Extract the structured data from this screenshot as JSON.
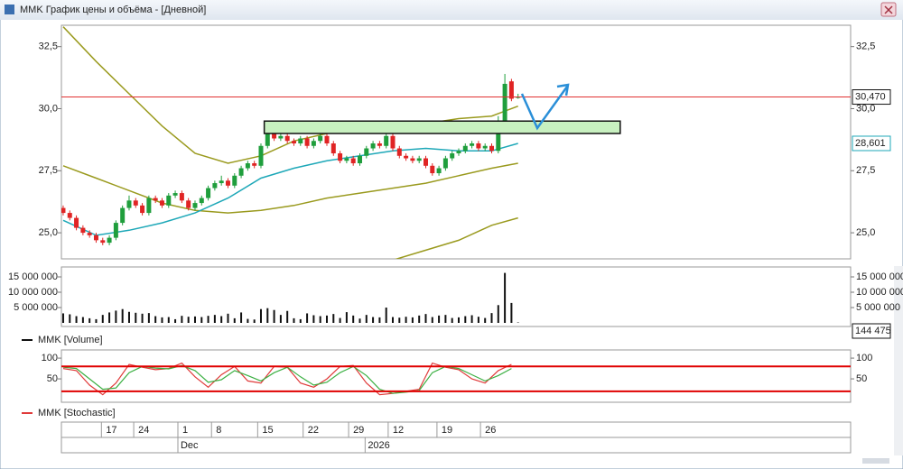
{
  "window": {
    "title": "MMK График цены и объёма - [Дневной]"
  },
  "date_axis": {
    "xlim": [
      -0.27,
      119.45
    ],
    "day_ticks": [
      {
        "value": 5.8,
        "label": "17"
      },
      {
        "value": 10.7,
        "label": "24"
      },
      {
        "value": 17.4,
        "label": "1"
      },
      {
        "value": 22.5,
        "label": "8"
      },
      {
        "value": 29.5,
        "label": "15"
      },
      {
        "value": 36.4,
        "label": "22"
      },
      {
        "value": 43.3,
        "label": "29"
      },
      {
        "value": 49.3,
        "label": "12"
      },
      {
        "value": 56.7,
        "label": "19"
      },
      {
        "value": 63.3,
        "label": "26"
      }
    ],
    "month_ticks": [
      {
        "value": 17.4,
        "label": "Dec"
      },
      {
        "value": 45.8,
        "label": "2026"
      }
    ]
  },
  "chart_data": [
    {
      "type": "candlestick",
      "up_color": "#1f9e3c",
      "down_color": "#e02424",
      "ylim": [
        23.95,
        33.36
      ],
      "yticks": [
        {
          "value": 25,
          "label": "25,0"
        },
        {
          "value": 27.5,
          "label": "27,5"
        },
        {
          "value": 30,
          "label": "30,0"
        },
        {
          "value": 32.5,
          "label": "32,5"
        }
      ],
      "open": [
        26.0,
        25.8,
        25.6,
        25.2,
        25.0,
        24.9,
        24.7,
        24.6,
        24.8,
        25.4,
        26.0,
        26.3,
        26.1,
        25.8,
        26.4,
        26.3,
        26.1,
        26.5,
        26.6,
        26.3,
        26.0,
        26.2,
        26.4,
        26.8,
        27.0,
        27.1,
        26.9,
        27.3,
        27.6,
        27.8,
        27.7,
        28.5,
        29.0,
        28.8,
        28.9,
        28.7,
        28.6,
        28.8,
        28.5,
        28.7,
        28.9,
        28.6,
        28.2,
        27.9,
        28.0,
        27.8,
        28.1,
        28.4,
        28.6,
        28.5,
        28.9,
        28.4,
        28.1,
        28.0,
        27.9,
        28.0,
        27.7,
        27.4,
        27.6,
        28.0,
        28.2,
        28.3,
        28.5,
        28.6,
        28.4,
        28.5,
        28.3,
        29.5,
        31.1,
        30.45
      ],
      "high": [
        26.1,
        25.9,
        25.7,
        25.3,
        25.1,
        25.0,
        24.8,
        24.9,
        25.5,
        26.1,
        26.5,
        26.4,
        26.2,
        26.5,
        26.5,
        26.4,
        26.6,
        26.7,
        26.7,
        26.4,
        26.3,
        26.5,
        26.9,
        27.1,
        27.3,
        27.2,
        27.4,
        27.7,
        27.9,
        27.9,
        28.6,
        29.2,
        29.1,
        29.0,
        29.0,
        28.8,
        28.9,
        28.9,
        28.8,
        29.0,
        29.0,
        28.7,
        28.3,
        28.1,
        28.1,
        28.2,
        28.5,
        28.7,
        28.7,
        29.0,
        29.0,
        28.5,
        28.2,
        28.1,
        28.1,
        28.1,
        27.8,
        27.7,
        28.1,
        28.3,
        28.4,
        28.6,
        28.7,
        28.7,
        28.6,
        28.6,
        29.7,
        31.4,
        31.2,
        30.6
      ],
      "low": [
        25.7,
        25.5,
        25.1,
        24.9,
        24.8,
        24.6,
        24.5,
        24.5,
        24.7,
        25.3,
        25.9,
        26.0,
        25.7,
        25.7,
        26.2,
        26.0,
        26.0,
        26.4,
        26.2,
        25.9,
        25.9,
        26.1,
        26.3,
        26.7,
        26.9,
        26.8,
        26.8,
        27.2,
        27.5,
        27.6,
        27.6,
        28.4,
        28.7,
        28.7,
        28.6,
        28.5,
        28.5,
        28.4,
        28.4,
        28.6,
        28.5,
        28.1,
        27.8,
        27.8,
        27.7,
        27.7,
        28.0,
        28.3,
        28.4,
        28.4,
        28.3,
        28.0,
        27.9,
        27.8,
        27.8,
        27.6,
        27.3,
        27.3,
        27.5,
        27.9,
        28.1,
        28.2,
        28.4,
        28.3,
        28.3,
        28.2,
        28.2,
        29.4,
        30.3,
        30.4
      ],
      "close": [
        25.8,
        25.6,
        25.2,
        25.0,
        24.9,
        24.7,
        24.6,
        24.8,
        25.4,
        26.0,
        26.3,
        26.1,
        25.8,
        26.4,
        26.3,
        26.1,
        26.5,
        26.6,
        26.3,
        26.0,
        26.2,
        26.4,
        26.8,
        27.0,
        27.1,
        26.9,
        27.3,
        27.6,
        27.8,
        27.7,
        28.5,
        29.0,
        28.8,
        28.9,
        28.7,
        28.6,
        28.8,
        28.5,
        28.7,
        28.9,
        28.6,
        28.2,
        27.9,
        28.0,
        27.8,
        28.1,
        28.4,
        28.6,
        28.5,
        28.9,
        28.4,
        28.1,
        28.0,
        27.9,
        28.0,
        27.7,
        27.4,
        27.6,
        28.0,
        28.2,
        28.3,
        28.5,
        28.6,
        28.4,
        28.5,
        28.3,
        29.5,
        31.0,
        30.4,
        30.47
      ],
      "lines": [
        {
          "color": "#9a9a1e",
          "x": [
            0,
            5,
            10,
            15,
            20,
            25,
            30,
            35,
            40,
            45,
            50,
            55,
            60,
            65,
            69
          ],
          "values": [
            33.3,
            31.9,
            30.6,
            29.3,
            28.2,
            27.8,
            28.1,
            28.7,
            29.0,
            29.2,
            29.3,
            29.4,
            29.6,
            29.7,
            30.1
          ]
        },
        {
          "color": "#9a9a1e",
          "x": [
            0,
            5,
            10,
            15,
            20,
            25,
            30,
            35,
            40,
            45,
            50,
            55,
            60,
            65,
            69
          ],
          "values": [
            27.7,
            27.2,
            26.7,
            26.2,
            25.9,
            25.8,
            25.9,
            26.1,
            26.4,
            26.6,
            26.8,
            27.0,
            27.3,
            27.6,
            27.8
          ]
        },
        {
          "color": "#9a9a1e",
          "x": [
            45,
            50,
            55,
            60,
            65,
            69
          ],
          "values": [
            23.6,
            23.9,
            24.3,
            24.7,
            25.3,
            25.6
          ]
        },
        {
          "color": "#1ea8b8",
          "x": [
            0,
            5,
            10,
            15,
            20,
            25,
            30,
            35,
            40,
            45,
            50,
            55,
            60,
            65,
            69
          ],
          "values": [
            25.5,
            24.9,
            25.1,
            25.4,
            25.8,
            26.4,
            27.2,
            27.6,
            27.9,
            28.1,
            28.3,
            28.4,
            28.3,
            28.3,
            28.6
          ],
          "last_label": {
            "value": 28.601,
            "label": "28,601"
          }
        }
      ],
      "hlines": [
        {
          "value": 30.47,
          "label": "30,470",
          "color": "#e03030"
        }
      ],
      "zones": [
        {
          "y0": 29.0,
          "y1": 29.5,
          "x0": 30.5,
          "x1": 84.5,
          "color": "#c8f0c0"
        }
      ]
    },
    {
      "type": "bar",
      "name": "MMK [Volume]",
      "color": "#111111",
      "ylim": [
        0,
        17650000
      ],
      "yticks": [
        {
          "value": 5000000,
          "label": "5 000 000"
        },
        {
          "value": 10000000,
          "label": "10 000 000"
        },
        {
          "value": 15000000,
          "label": "15 000 000"
        }
      ],
      "values": [
        3100000,
        2800000,
        2200000,
        1900000,
        1500000,
        1200000,
        2600000,
        3400000,
        4000000,
        4500000,
        3600000,
        3300000,
        3000000,
        3200000,
        2200000,
        1800000,
        1900000,
        1200000,
        2300000,
        2000000,
        2100000,
        1900000,
        2300000,
        2600000,
        2200000,
        3000000,
        1500000,
        3400000,
        1300000,
        1100000,
        4500000,
        4800000,
        4200000,
        2600000,
        3900000,
        1500000,
        1200000,
        3100000,
        2500000,
        2200000,
        2400000,
        2900000,
        1600000,
        3500000,
        2400000,
        1400000,
        2600000,
        1900000,
        1800000,
        5000000,
        1900000,
        1700000,
        2000000,
        1800000,
        2400000,
        2900000,
        1900000,
        2400000,
        2600000,
        1600000,
        1800000,
        2200000,
        2500000,
        2000000,
        1600000,
        3200000,
        5800000,
        16300000,
        6500000,
        144475
      ],
      "last_label": {
        "value": 144475,
        "label": "144 475"
      }
    },
    {
      "type": "line",
      "ylim": [
        -2,
        111
      ],
      "yticks": [
        50,
        100
      ],
      "hlines": [
        {
          "value": 80,
          "color": "#e00000"
        },
        {
          "value": 20,
          "color": "#e00000"
        }
      ],
      "series": [
        {
          "name": "MMK [Stochastic]",
          "color": "#e03a3a",
          "x": [
            0,
            2,
            4,
            6,
            8,
            10,
            12,
            14,
            16,
            18,
            20,
            22,
            24,
            26,
            28,
            30,
            32,
            34,
            36,
            38,
            40,
            42,
            44,
            46,
            48,
            50,
            52,
            54,
            56,
            58,
            60,
            62,
            64,
            66,
            68
          ],
          "values": [
            75,
            70,
            35,
            12,
            40,
            85,
            78,
            72,
            75,
            88,
            55,
            30,
            60,
            80,
            45,
            40,
            80,
            78,
            40,
            30,
            50,
            80,
            82,
            40,
            12,
            15,
            20,
            25,
            88,
            78,
            72,
            50,
            40,
            70,
            85
          ]
        },
        {
          "color": "#3cb043",
          "x": [
            0,
            2,
            4,
            6,
            8,
            10,
            12,
            14,
            16,
            18,
            20,
            22,
            24,
            26,
            28,
            30,
            32,
            34,
            36,
            38,
            40,
            42,
            44,
            46,
            48,
            50,
            52,
            54,
            56,
            58,
            60,
            62,
            64,
            66,
            68
          ],
          "values": [
            78,
            75,
            50,
            25,
            28,
            65,
            80,
            76,
            74,
            82,
            70,
            42,
            48,
            70,
            58,
            45,
            65,
            78,
            55,
            35,
            42,
            65,
            80,
            58,
            25,
            15,
            18,
            22,
            65,
            80,
            75,
            60,
            45,
            58,
            75
          ]
        }
      ]
    }
  ]
}
